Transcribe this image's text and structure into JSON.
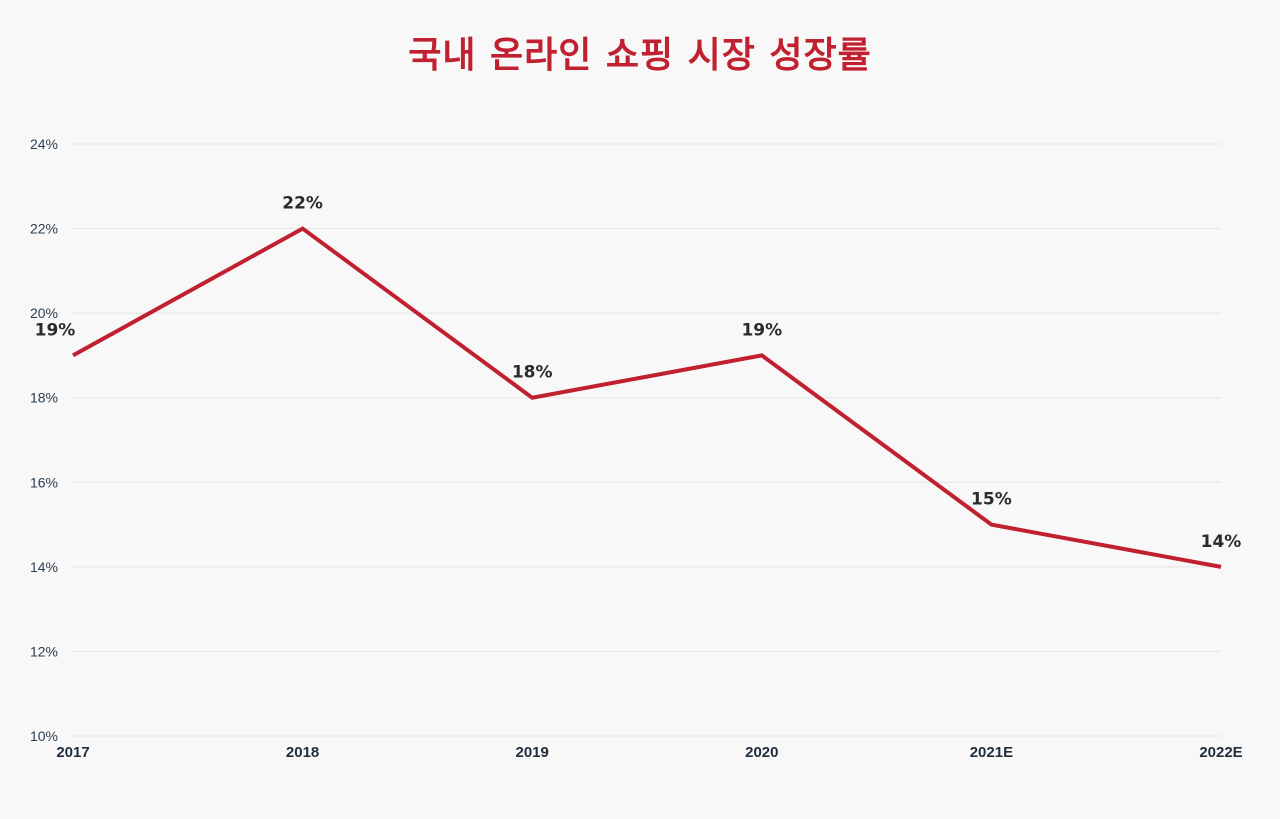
{
  "chart_data": {
    "type": "line",
    "title": "국내 온라인 쇼핑 시장 성장률",
    "categories": [
      "2017",
      "2018",
      "2019",
      "2020",
      "2021E",
      "2022E"
    ],
    "series": [
      {
        "values": [
          19,
          22,
          18,
          19,
          15,
          14
        ],
        "data_labels": [
          "19%",
          "22%",
          "18%",
          "19%",
          "15%",
          "14%"
        ]
      }
    ],
    "ylim": [
      10,
      24
    ],
    "yticks": [
      10,
      12,
      14,
      16,
      18,
      20,
      22,
      24
    ],
    "ytick_labels": [
      "10%",
      "12%",
      "14%",
      "16%",
      "18%",
      "20%",
      "22%",
      "24%"
    ],
    "grid": true,
    "line_color": "#c0202f"
  }
}
